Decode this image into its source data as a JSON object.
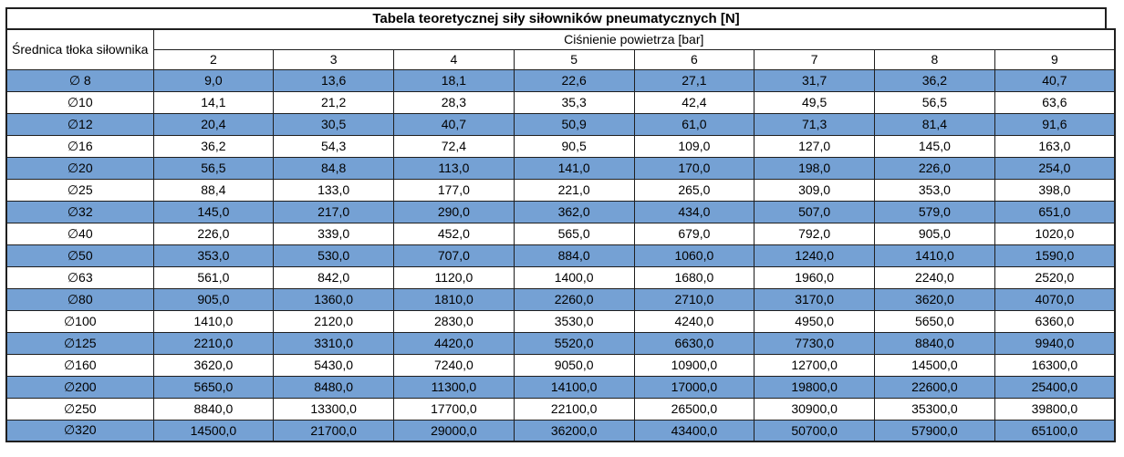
{
  "chart_data": {
    "type": "table",
    "title": "Tabela teoretycznej siły siłowników pneumatycznych [N]",
    "corner_header": "Średnica tłoka siłownika",
    "group_header": "Ciśnienie powietrza [bar]",
    "pressure_bar": [
      "2",
      "3",
      "4",
      "5",
      "6",
      "7",
      "8",
      "9"
    ],
    "rows": [
      {
        "diameter": "∅ 8",
        "forces": [
          "9,0",
          "13,6",
          "18,1",
          "22,6",
          "27,1",
          "31,7",
          "36,2",
          "40,7"
        ]
      },
      {
        "diameter": "∅10",
        "forces": [
          "14,1",
          "21,2",
          "28,3",
          "35,3",
          "42,4",
          "49,5",
          "56,5",
          "63,6"
        ]
      },
      {
        "diameter": "∅12",
        "forces": [
          "20,4",
          "30,5",
          "40,7",
          "50,9",
          "61,0",
          "71,3",
          "81,4",
          "91,6"
        ]
      },
      {
        "diameter": "∅16",
        "forces": [
          "36,2",
          "54,3",
          "72,4",
          "90,5",
          "109,0",
          "127,0",
          "145,0",
          "163,0"
        ]
      },
      {
        "diameter": "∅20",
        "forces": [
          "56,5",
          "84,8",
          "113,0",
          "141,0",
          "170,0",
          "198,0",
          "226,0",
          "254,0"
        ]
      },
      {
        "diameter": "∅25",
        "forces": [
          "88,4",
          "133,0",
          "177,0",
          "221,0",
          "265,0",
          "309,0",
          "353,0",
          "398,0"
        ]
      },
      {
        "diameter": "∅32",
        "forces": [
          "145,0",
          "217,0",
          "290,0",
          "362,0",
          "434,0",
          "507,0",
          "579,0",
          "651,0"
        ]
      },
      {
        "diameter": "∅40",
        "forces": [
          "226,0",
          "339,0",
          "452,0",
          "565,0",
          "679,0",
          "792,0",
          "905,0",
          "1020,0"
        ]
      },
      {
        "diameter": "∅50",
        "forces": [
          "353,0",
          "530,0",
          "707,0",
          "884,0",
          "1060,0",
          "1240,0",
          "1410,0",
          "1590,0"
        ]
      },
      {
        "diameter": "∅63",
        "forces": [
          "561,0",
          "842,0",
          "1120,0",
          "1400,0",
          "1680,0",
          "1960,0",
          "2240,0",
          "2520,0"
        ]
      },
      {
        "diameter": "∅80",
        "forces": [
          "905,0",
          "1360,0",
          "1810,0",
          "2260,0",
          "2710,0",
          "3170,0",
          "3620,0",
          "4070,0"
        ]
      },
      {
        "diameter": "∅100",
        "forces": [
          "1410,0",
          "2120,0",
          "2830,0",
          "3530,0",
          "4240,0",
          "4950,0",
          "5650,0",
          "6360,0"
        ]
      },
      {
        "diameter": "∅125",
        "forces": [
          "2210,0",
          "3310,0",
          "4420,0",
          "5520,0",
          "6630,0",
          "7730,0",
          "8840,0",
          "9940,0"
        ]
      },
      {
        "diameter": "∅160",
        "forces": [
          "3620,0",
          "5430,0",
          "7240,0",
          "9050,0",
          "10900,0",
          "12700,0",
          "14500,0",
          "16300,0"
        ]
      },
      {
        "diameter": "∅200",
        "forces": [
          "5650,0",
          "8480,0",
          "11300,0",
          "14100,0",
          "17000,0",
          "19800,0",
          "22600,0",
          "25400,0"
        ]
      },
      {
        "diameter": "∅250",
        "forces": [
          "8840,0",
          "13300,0",
          "17700,0",
          "22100,0",
          "26500,0",
          "30900,0",
          "35300,0",
          "39800,0"
        ]
      },
      {
        "diameter": "∅320",
        "forces": [
          "14500,0",
          "21700,0",
          "29000,0",
          "36200,0",
          "43400,0",
          "50700,0",
          "57900,0",
          "65100,0"
        ]
      }
    ],
    "layout": {
      "row_striping": "odd rows highlighted blue starting with first data row",
      "grid": "on"
    },
    "colors": {
      "row_highlight": "#75A1D4",
      "row_plain": "#FFFFFF",
      "border": "#1F1F1F",
      "header_divider": "#8A8A8A",
      "text": "#000000"
    }
  }
}
